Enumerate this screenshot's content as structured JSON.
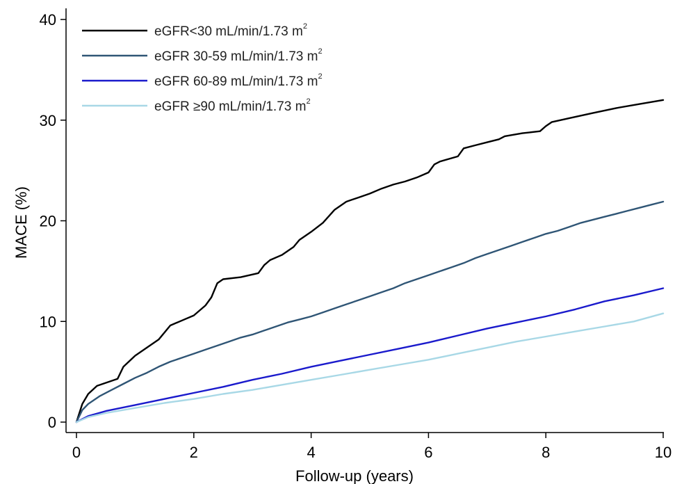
{
  "chart_data": {
    "type": "line",
    "title": "",
    "xlabel": "Follow-up (years)",
    "ylabel": "MACE (%)",
    "xlim": [
      0,
      10
    ],
    "ylim": [
      0,
      40
    ],
    "x_ticks": [
      0,
      2,
      4,
      6,
      8,
      10
    ],
    "y_ticks": [
      0,
      10,
      20,
      30,
      40
    ],
    "grid": false,
    "legend_position": "top-left",
    "series": [
      {
        "name": "eGFR<30 mL/min/1.73 m",
        "name_sup": "2",
        "color": "#000000",
        "x": [
          0,
          0.1,
          0.2,
          0.35,
          0.7,
          0.8,
          1.0,
          1.2,
          1.4,
          1.6,
          1.8,
          2.0,
          2.2,
          2.3,
          2.4,
          2.5,
          2.8,
          3.1,
          3.2,
          3.3,
          3.5,
          3.7,
          3.8,
          4.0,
          4.2,
          4.4,
          4.6,
          4.8,
          5.0,
          5.2,
          5.4,
          5.6,
          5.8,
          6.0,
          6.1,
          6.2,
          6.5,
          6.6,
          6.8,
          7.0,
          7.2,
          7.3,
          7.6,
          7.9,
          8.0,
          8.1,
          8.4,
          8.8,
          9.2,
          9.6,
          10.0
        ],
        "values": [
          0,
          1.8,
          2.8,
          3.6,
          4.3,
          5.5,
          6.6,
          7.4,
          8.2,
          9.6,
          10.1,
          10.6,
          11.6,
          12.4,
          13.8,
          14.2,
          14.4,
          14.8,
          15.6,
          16.1,
          16.6,
          17.4,
          18.1,
          18.9,
          19.8,
          21.1,
          21.9,
          22.3,
          22.7,
          23.2,
          23.6,
          23.9,
          24.3,
          24.8,
          25.6,
          25.9,
          26.4,
          27.2,
          27.5,
          27.8,
          28.1,
          28.4,
          28.7,
          28.9,
          29.4,
          29.8,
          30.2,
          30.7,
          31.2,
          31.6,
          32.0
        ]
      },
      {
        "name": "eGFR 30-59 mL/min/1.73 m",
        "name_sup": "2",
        "color": "#2f5575",
        "x": [
          0,
          0.1,
          0.2,
          0.4,
          0.6,
          0.8,
          1.0,
          1.2,
          1.4,
          1.6,
          1.8,
          2.0,
          2.2,
          2.4,
          2.6,
          2.8,
          3.0,
          3.2,
          3.4,
          3.6,
          3.8,
          4.0,
          4.2,
          4.4,
          4.6,
          4.8,
          5.0,
          5.2,
          5.4,
          5.6,
          5.8,
          6.0,
          6.2,
          6.4,
          6.6,
          6.8,
          7.0,
          7.2,
          7.4,
          7.6,
          7.8,
          8.0,
          8.2,
          8.4,
          8.6,
          8.8,
          9.0,
          9.2,
          9.4,
          9.6,
          9.8,
          10.0
        ],
        "values": [
          0,
          1.2,
          1.8,
          2.6,
          3.2,
          3.8,
          4.4,
          4.9,
          5.5,
          6.0,
          6.4,
          6.8,
          7.2,
          7.6,
          8.0,
          8.4,
          8.7,
          9.1,
          9.5,
          9.9,
          10.2,
          10.5,
          10.9,
          11.3,
          11.7,
          12.1,
          12.5,
          12.9,
          13.3,
          13.8,
          14.2,
          14.6,
          15.0,
          15.4,
          15.8,
          16.3,
          16.7,
          17.1,
          17.5,
          17.9,
          18.3,
          18.7,
          19.0,
          19.4,
          19.8,
          20.1,
          20.4,
          20.7,
          21.0,
          21.3,
          21.6,
          21.9
        ]
      },
      {
        "name": "eGFR 60-89 mL/min/1.73 m",
        "name_sup": "2",
        "color": "#1a1acc",
        "x": [
          0,
          0.2,
          0.5,
          1.0,
          1.5,
          2.0,
          2.5,
          3.0,
          3.5,
          4.0,
          4.5,
          5.0,
          5.5,
          6.0,
          6.5,
          7.0,
          7.5,
          8.0,
          8.5,
          9.0,
          9.5,
          10.0
        ],
        "values": [
          0,
          0.6,
          1.1,
          1.7,
          2.3,
          2.9,
          3.5,
          4.2,
          4.8,
          5.5,
          6.1,
          6.7,
          7.3,
          7.9,
          8.6,
          9.3,
          9.9,
          10.5,
          11.2,
          12.0,
          12.6,
          13.3
        ]
      },
      {
        "name": "eGFR ≥90 mL/min/1.73 m",
        "name_sup": "2",
        "color": "#a8d8e6",
        "x": [
          0,
          0.2,
          0.5,
          1.0,
          1.5,
          2.0,
          2.5,
          3.0,
          3.5,
          4.0,
          4.5,
          5.0,
          5.5,
          6.0,
          6.5,
          7.0,
          7.5,
          8.0,
          8.5,
          9.0,
          9.5,
          10.0
        ],
        "values": [
          0,
          0.5,
          0.9,
          1.4,
          1.9,
          2.3,
          2.8,
          3.2,
          3.7,
          4.2,
          4.7,
          5.2,
          5.7,
          6.2,
          6.8,
          7.4,
          8.0,
          8.5,
          9.0,
          9.5,
          10.0,
          10.8
        ]
      }
    ]
  }
}
